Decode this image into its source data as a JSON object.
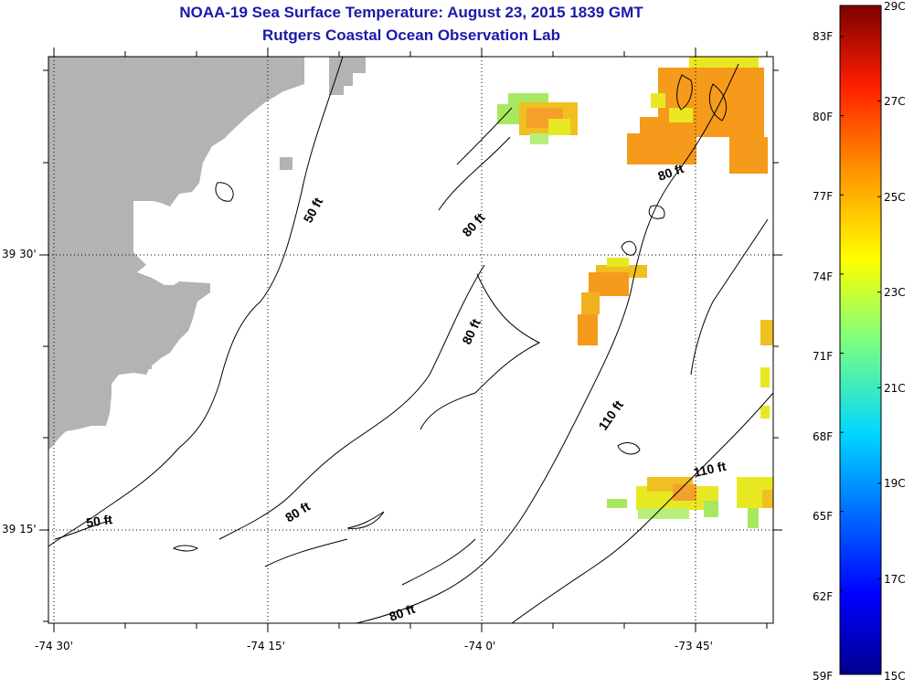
{
  "title": "NOAA-19 Sea Surface Temperature:  August 23, 2015 1839 GMT",
  "subtitle": "Rutgers Coastal Ocean Observation Lab",
  "axes": {
    "lon_labels": [
      "-74 30'",
      "-74 15'",
      "-74 0'",
      "-73 45'"
    ],
    "lat_labels": [
      "39 30'",
      "39 15'"
    ]
  },
  "contour_labels": [
    {
      "text": "50 ft",
      "kind": "isobath-50"
    },
    {
      "text": "50 ft",
      "kind": "isobath-50"
    },
    {
      "text": "80 ft",
      "kind": "isobath-80"
    },
    {
      "text": "80 ft",
      "kind": "isobath-80"
    },
    {
      "text": "80 ft",
      "kind": "isobath-80"
    },
    {
      "text": "80 ft",
      "kind": "isobath-80"
    },
    {
      "text": "80 ft",
      "kind": "isobath-80"
    },
    {
      "text": "110 ft",
      "kind": "isobath-110"
    },
    {
      "text": "110 ft",
      "kind": "isobath-110"
    }
  ],
  "colorbar": {
    "f_labels": [
      "83F",
      "80F",
      "77F",
      "74F",
      "71F",
      "68F",
      "65F",
      "62F",
      "59F"
    ],
    "c_labels": [
      "29C",
      "27C",
      "25C",
      "23C",
      "21C",
      "19C",
      "17C",
      "15C"
    ],
    "c_min": 15,
    "c_max": 29
  },
  "colors": {
    "title": "#1a1aa8",
    "land": "#b3b3b3",
    "warm": "#f59a1a",
    "yellow": "#e8e822",
    "green": "#a8e860"
  }
}
